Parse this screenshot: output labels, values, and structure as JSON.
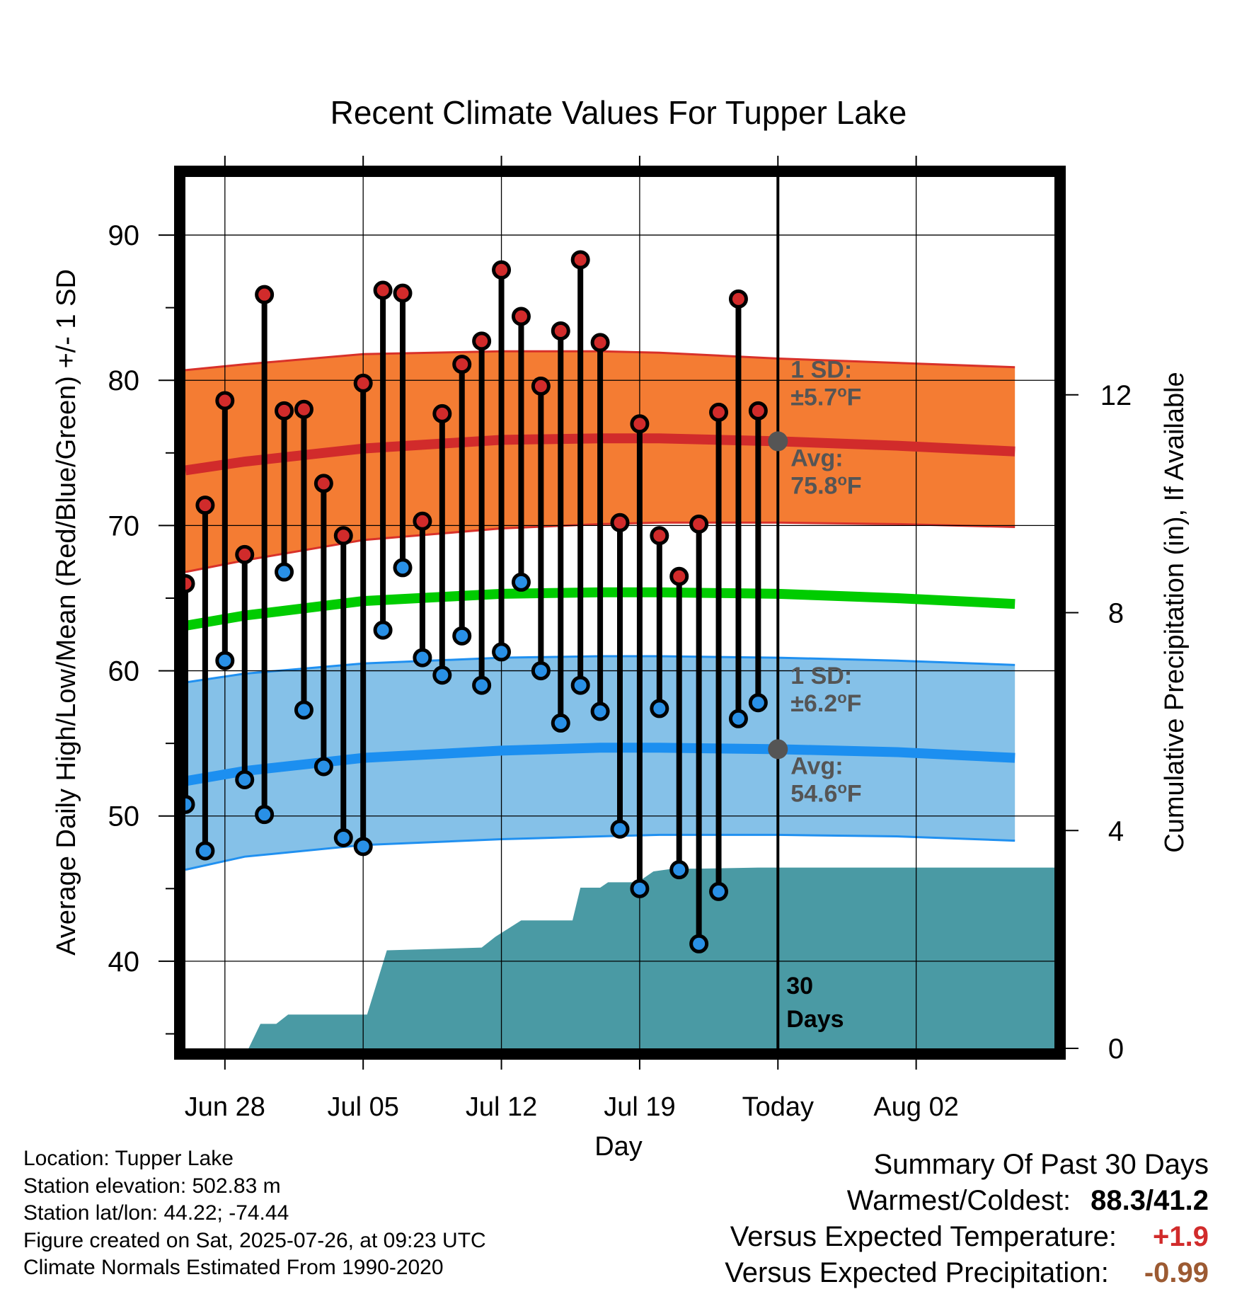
{
  "chart_data": {
    "type": "line",
    "title": "Recent Climate Values For Tupper Lake",
    "xlabel": "Day",
    "ylabel": "Average Daily High/Low/Mean (Red/Blue/Green) +/- 1 SD",
    "y2label": "Cumulative Precipitation (in), If Available",
    "ylim": [
      34,
      94
    ],
    "y2lim": [
      0,
      16
    ],
    "xlim": [
      -30,
      14
    ],
    "x_tick_labels": [
      "Jun 28",
      "Jul 05",
      "Jul 12",
      "Jul 19",
      "Today",
      "Aug 02"
    ],
    "x_ticks": [
      -28,
      -21,
      -14,
      -7,
      0,
      7
    ],
    "y_ticks": [
      40,
      50,
      60,
      70,
      80,
      90
    ],
    "y2_ticks": [
      0,
      4,
      8,
      12
    ],
    "grid": true,
    "today_marker": {
      "x": 0,
      "label_line1": "30",
      "label_line2": "Days"
    },
    "daily_x": [
      -30,
      -29,
      -28,
      -27,
      -26,
      -25,
      -24,
      -23,
      -22,
      -21,
      -20,
      -19,
      -18,
      -17,
      -16,
      -15,
      -14,
      -13,
      -12,
      -11,
      -10,
      -9,
      -8,
      -7,
      -6,
      -5,
      -4,
      -3,
      -2,
      -1
    ],
    "daily_high": [
      66.0,
      71.4,
      78.6,
      68.0,
      85.9,
      77.9,
      78.0,
      72.9,
      69.3,
      79.8,
      86.2,
      86.0,
      70.3,
      77.7,
      81.1,
      82.7,
      87.6,
      84.4,
      79.6,
      83.4,
      88.3,
      82.6,
      70.2,
      77.0,
      69.3,
      66.5,
      70.1,
      77.8,
      85.6,
      77.9
    ],
    "daily_low": [
      50.8,
      47.6,
      60.7,
      52.5,
      50.1,
      66.8,
      57.3,
      53.4,
      48.5,
      47.9,
      62.8,
      67.1,
      60.9,
      59.7,
      62.4,
      59.0,
      61.3,
      66.1,
      60.0,
      56.4,
      59.0,
      57.2,
      49.1,
      45.0,
      57.4,
      46.3,
      41.2,
      44.8,
      56.7,
      57.8
    ],
    "normal_x": [
      -30,
      -27,
      -21,
      -14,
      -9,
      -6,
      0,
      6,
      12
    ],
    "normal_high_avg": [
      73.8,
      74.4,
      75.3,
      75.9,
      76.0,
      76.0,
      75.8,
      75.5,
      75.1
    ],
    "normal_high_upper": [
      80.7,
      81.1,
      81.8,
      82.0,
      82.0,
      81.9,
      81.5,
      81.2,
      80.9
    ],
    "normal_high_lower": [
      66.8,
      67.6,
      69.0,
      69.8,
      70.1,
      70.2,
      70.2,
      70.1,
      69.9
    ],
    "normal_mean": [
      63.1,
      63.8,
      64.8,
      65.3,
      65.4,
      65.4,
      65.3,
      65.0,
      64.6
    ],
    "normal_low_avg": [
      52.4,
      53.1,
      54.0,
      54.5,
      54.7,
      54.7,
      54.6,
      54.4,
      54.0
    ],
    "normal_low_upper": [
      59.2,
      59.8,
      60.5,
      60.9,
      61.0,
      61.0,
      60.9,
      60.7,
      60.4
    ],
    "normal_low_lower": [
      46.3,
      47.2,
      48.0,
      48.4,
      48.6,
      48.7,
      48.7,
      48.6,
      48.3
    ],
    "precip_x": [
      -30,
      -26.8,
      -26.2,
      -25.4,
      -24.8,
      -22.8,
      -22.3,
      -20.8,
      -19.8,
      -15,
      -14.3,
      -13,
      -10.4,
      -10,
      -9,
      -8.6,
      -7.1,
      -6.3,
      -5.3,
      -4,
      -1,
      14
    ],
    "precip_y": [
      0,
      0,
      0.45,
      0.45,
      0.62,
      0.62,
      0.62,
      0.62,
      1.8,
      1.85,
      2.05,
      2.35,
      2.35,
      2.95,
      2.95,
      3.05,
      3.05,
      3.25,
      3.3,
      3.3,
      3.32,
      3.32
    ],
    "sd_high": {
      "label1": "1 SD:",
      "label2": "±5.7°F",
      "avg_label": "Avg:",
      "avg_value": "75.8°F",
      "marker_value": 75.8
    },
    "sd_low": {
      "label1": "1 SD:",
      "label2": "±6.2°F",
      "avg_label": "Avg:",
      "avg_value": "54.6°F",
      "marker_value": 54.6
    },
    "colors": {
      "high_band": "#f47c33",
      "high_band_edge": "#d8312a",
      "high_avg": "#d12b2b",
      "mean": "#00cc00",
      "low_band": "#85c1e8",
      "low_band_edge": "#2090f0",
      "low_avg": "#1c8ff0",
      "precip": "#4a9aa4",
      "high_dot": "#d12b2b",
      "low_dot": "#2990e6",
      "sd_text": "#555555",
      "today_dot": "#555555"
    }
  },
  "info": {
    "location": "Location: Tupper Lake",
    "elevation": "Station elevation: 502.83 m",
    "latlon": "Station lat/lon: 44.22; -74.44",
    "created": "Figure created on Sat, 2025-07-26, at 09:23 UTC",
    "normals": "Climate Normals Estimated From 1990-2020"
  },
  "summary": {
    "title": "Summary Of Past 30 Days",
    "warm_cold_label": "Warmest/Coldest:",
    "warm_cold_value": "88.3/41.2",
    "temp_label": "Versus Expected Temperature:",
    "temp_value": "+1.9",
    "temp_color": "#d12b2b",
    "precip_label": "Versus Expected Precipitation:",
    "precip_value": "-0.99",
    "precip_color": "#9c5a32"
  }
}
